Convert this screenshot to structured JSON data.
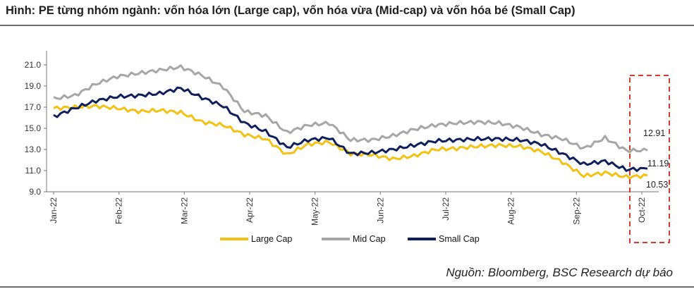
{
  "title": "Hình: PE từng nhóm ngành: vốn hóa lớn (Large cap), vốn hóa vừa (Mid-cap) và vốn hóa bé (Small Cap)",
  "source": "Nguồn: Bloomberg, BSC Research dự báo",
  "colors": {
    "large": "#f2c114",
    "mid": "#a6a6a6",
    "small": "#0f1f5c",
    "highlight": "#d63a2f"
  },
  "chart_data": {
    "type": "line",
    "x_tick_labels": [
      "Jan-22",
      "Feb-22",
      "Mar-22",
      "Apr-22",
      "May-22",
      "Jun-22",
      "Jul-22",
      "Aug-22",
      "Sep-22",
      "Oct-22"
    ],
    "y_ticks": [
      "9.0",
      "11.0",
      "13.0",
      "15.0",
      "17.0",
      "19.0",
      "21.0"
    ],
    "ylim": [
      9.0,
      21.8
    ],
    "grid": false,
    "legend_position": "bottom",
    "x_points": [
      "Jan-22",
      "Jan-22+",
      "Feb-22-",
      "Feb-22",
      "Feb-22+",
      "Mar-22-",
      "Mar-22",
      "Mar-22+",
      "Apr-22-",
      "Apr-22",
      "Apr-22+",
      "May-22-",
      "May-22",
      "May-22+",
      "Jun-22-",
      "Jun-22",
      "Jun-22+",
      "Jul-22-",
      "Jul-22",
      "Jul-22+",
      "Aug-22-",
      "Aug-22",
      "Aug-22+",
      "Sep-22-",
      "Sep-22",
      "Sep-22+",
      "Oct-22-",
      "Oct-22",
      "Oct-22+"
    ],
    "series": [
      {
        "name": "Large Cap",
        "color": "#f2c114",
        "values": [
          16.9,
          17.0,
          17.1,
          16.9,
          16.6,
          16.7,
          16.5,
          15.6,
          15.3,
          14.4,
          14.0,
          12.5,
          13.5,
          13.7,
          12.6,
          12.5,
          12.1,
          12.4,
          13.0,
          13.1,
          13.3,
          13.4,
          13.3,
          12.8,
          11.8,
          10.5,
          10.8,
          10.4,
          10.53
        ]
      },
      {
        "name": "Mid Cap",
        "color": "#a6a6a6",
        "values": [
          17.8,
          18.1,
          19.2,
          19.9,
          20.2,
          20.5,
          20.8,
          20.0,
          18.9,
          16.6,
          16.2,
          14.6,
          15.3,
          15.5,
          13.9,
          13.9,
          14.3,
          14.9,
          15.3,
          15.5,
          15.6,
          15.5,
          15.1,
          14.4,
          14.0,
          13.1,
          14.1,
          12.9,
          12.91
        ]
      },
      {
        "name": "Small Cap",
        "color": "#0f1f5c",
        "values": [
          16.1,
          16.9,
          17.6,
          18.0,
          18.1,
          18.3,
          18.8,
          17.9,
          17.1,
          15.5,
          14.7,
          13.2,
          13.9,
          14.1,
          12.6,
          12.7,
          13.0,
          13.4,
          13.8,
          13.9,
          14.0,
          14.0,
          13.9,
          13.5,
          12.6,
          11.6,
          11.9,
          11.1,
          11.19
        ]
      }
    ],
    "annotations": [
      "12.91",
      "11.19",
      "10.53"
    ]
  }
}
